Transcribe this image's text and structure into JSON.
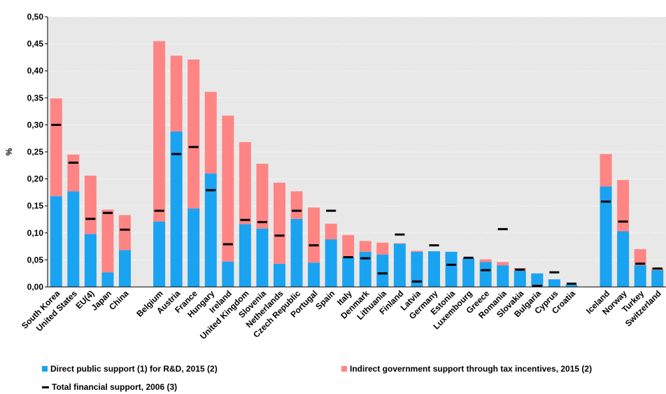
{
  "chart_data": {
    "type": "bar",
    "ylabel": "%",
    "ylim": [
      0,
      0.5
    ],
    "yticks": [
      "0,00",
      "0,05",
      "0,10",
      "0,15",
      "0,20",
      "0,25",
      "0,30",
      "0,35",
      "0,40",
      "0,45",
      "0,50"
    ],
    "categories": [
      "South Korea",
      "United States",
      "EU(4)",
      "Japan",
      "China",
      "",
      "Belgium",
      "Austria",
      "France",
      "Hungary",
      "Ireland",
      "United Kingdom",
      "Slovenia",
      "Netherlands",
      "Czech Republic",
      "Portugal",
      "Spain",
      "Italy",
      "Denmark",
      "Lithuania",
      "Finland",
      "Latvia",
      "Germany",
      "Estonia",
      "Luxembourg",
      "Greece",
      "Romania",
      "Slovakia",
      "Bulgaria",
      "Cyprus",
      "Croatia",
      "",
      "Iceland",
      "Norway",
      "Turkey",
      "Switzerland"
    ],
    "series": [
      {
        "name": "Direct public support (1) for R&D, 2015 (2)",
        "type": "bar",
        "stack": "2015",
        "values": [
          0.168,
          0.177,
          0.098,
          0.027,
          0.068,
          null,
          0.121,
          0.288,
          0.145,
          0.21,
          0.047,
          0.116,
          0.108,
          0.043,
          0.126,
          0.045,
          0.088,
          0.055,
          0.065,
          0.06,
          0.08,
          0.065,
          0.066,
          0.065,
          0.053,
          0.046,
          0.04,
          0.03,
          0.025,
          0.014,
          0.004,
          null,
          0.186,
          0.103,
          0.04,
          0.031
        ]
      },
      {
        "name": "Indirect government support through tax incentives, 2015 (2)",
        "type": "bar",
        "stack": "2015",
        "values": [
          0.181,
          0.068,
          0.108,
          0.116,
          0.065,
          null,
          0.334,
          0.14,
          0.276,
          0.151,
          0.27,
          0.152,
          0.12,
          0.15,
          0.051,
          0.102,
          0.029,
          0.041,
          0.02,
          0.022,
          0.001,
          0.002,
          0,
          0,
          0,
          0.005,
          0.006,
          0.005,
          0,
          0,
          0,
          null,
          0.06,
          0.095,
          0.03,
          0.004
        ]
      },
      {
        "name": "Total financial support, 2006 (3)",
        "type": "marker",
        "values": [
          0.3,
          0.23,
          0.126,
          0.137,
          0.106,
          null,
          0.141,
          0.246,
          0.259,
          0.179,
          0.079,
          0.124,
          0.12,
          0.095,
          0.141,
          0.077,
          0.141,
          0.055,
          0.053,
          0.025,
          0.097,
          0.01,
          0.077,
          0.041,
          0.054,
          0.031,
          0.107,
          0.032,
          0.002,
          0.027,
          0.006,
          null,
          0.158,
          0.121,
          0.043,
          0.034
        ]
      }
    ],
    "colors": {
      "direct": "#1aa3f0",
      "indirect": "#ff8585",
      "total": "#000000",
      "plot_bg": "#e8e8e8"
    }
  }
}
